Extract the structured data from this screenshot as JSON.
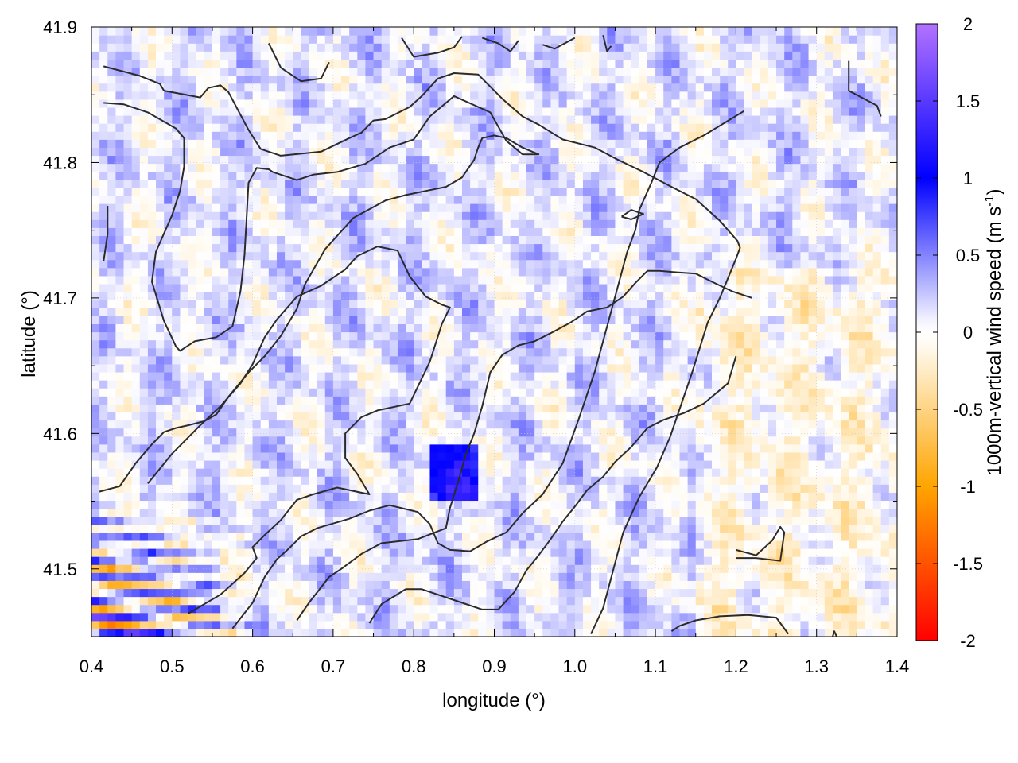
{
  "chart_data": {
    "type": "heatmap",
    "title": "",
    "xlabel": "longitude (°)",
    "ylabel": "latitude (°)",
    "colorbar_label": "1000m-vertical wind speed (m s",
    "colorbar_label_sup": "-1",
    "colorbar_label_end": ")",
    "xlim": [
      0.4,
      1.4
    ],
    "ylim": [
      41.45,
      41.9
    ],
    "x_ticks": [
      "0.4",
      "0.5",
      "0.6",
      "0.7",
      "0.8",
      "0.9",
      "1.0",
      "1.1",
      "1.2",
      "1.3",
      "1.4"
    ],
    "y_ticks": [
      "41.5",
      "41.6",
      "41.7",
      "41.8",
      "41.9"
    ],
    "colorbar_range": [
      -2,
      2
    ],
    "colorbar_ticks": [
      "2",
      "1.5",
      "1",
      "0.5",
      "0",
      "-0.5",
      "-1",
      "-1.5",
      "-2"
    ],
    "grid": true,
    "colormap": [
      "#ff0000",
      "#ffa500",
      "#fffbf2",
      "#ffffff",
      "#f2f2ff",
      "#0000ff",
      "#b272ff"
    ],
    "contour_lines": [
      {
        "points": [
          [
            0.415,
            41.871
          ],
          [
            0.46,
            41.864
          ],
          [
            0.485,
            41.858
          ],
          [
            0.49,
            41.853
          ],
          [
            0.535,
            41.848
          ],
          [
            0.545,
            41.855
          ],
          [
            0.56,
            41.857
          ],
          [
            0.57,
            41.852
          ],
          [
            0.595,
            41.824
          ],
          [
            0.61,
            41.81
          ],
          [
            0.635,
            41.805
          ],
          [
            0.685,
            41.808
          ],
          [
            0.72,
            41.818
          ],
          [
            0.735,
            41.822
          ],
          [
            0.75,
            41.831
          ],
          [
            0.765,
            41.832
          ],
          [
            0.795,
            41.841
          ],
          [
            0.81,
            41.849
          ],
          [
            0.83,
            41.862
          ],
          [
            0.85,
            41.866
          ],
          [
            0.88,
            41.865
          ],
          [
            0.91,
            41.847
          ],
          [
            0.935,
            41.834
          ],
          [
            0.955,
            41.828
          ],
          [
            0.985,
            41.817
          ],
          [
            1.025,
            41.811
          ],
          [
            1.05,
            41.803
          ],
          [
            1.085,
            41.793
          ],
          [
            1.12,
            41.782
          ],
          [
            1.15,
            41.773
          ],
          [
            1.18,
            41.757
          ],
          [
            1.202,
            41.742
          ],
          [
            1.205,
            41.737
          ],
          [
            1.2,
            41.729
          ],
          [
            1.18,
            41.7
          ],
          [
            1.165,
            41.682
          ],
          [
            1.145,
            41.644
          ],
          [
            1.118,
            41.597
          ],
          [
            1.102,
            41.575
          ],
          [
            1.08,
            41.553
          ],
          [
            1.06,
            41.527
          ],
          [
            1.035,
            41.471
          ],
          [
            1.02,
            41.452
          ]
        ]
      },
      {
        "points": [
          [
            0.415,
            41.844
          ],
          [
            0.44,
            41.843
          ],
          [
            0.47,
            41.837
          ],
          [
            0.505,
            41.825
          ],
          [
            0.515,
            41.818
          ],
          [
            0.515,
            41.797
          ],
          [
            0.51,
            41.779
          ],
          [
            0.5,
            41.761
          ],
          [
            0.48,
            41.734
          ],
          [
            0.475,
            41.712
          ],
          [
            0.49,
            41.683
          ],
          [
            0.505,
            41.664
          ],
          [
            0.51,
            41.661
          ],
          [
            0.528,
            41.668
          ],
          [
            0.555,
            41.671
          ],
          [
            0.575,
            41.679
          ],
          [
            0.585,
            41.705
          ],
          [
            0.59,
            41.732
          ],
          [
            0.595,
            41.785
          ],
          [
            0.605,
            41.796
          ],
          [
            0.62,
            41.795
          ],
          [
            0.625,
            41.793
          ],
          [
            0.655,
            41.787
          ],
          [
            0.675,
            41.791
          ],
          [
            0.705,
            41.793
          ],
          [
            0.74,
            41.799
          ],
          [
            0.77,
            41.811
          ],
          [
            0.8,
            41.817
          ],
          [
            0.82,
            41.834
          ],
          [
            0.85,
            41.849
          ],
          [
            0.895,
            41.837
          ],
          [
            0.915,
            41.816
          ],
          [
            0.935,
            41.806
          ],
          [
            0.955,
            41.806
          ],
          [
            0.935,
            41.811
          ],
          [
            0.915,
            41.818
          ],
          [
            0.9,
            41.82
          ],
          [
            0.885,
            41.818
          ],
          [
            0.88,
            41.811
          ],
          [
            0.875,
            41.802
          ],
          [
            0.86,
            41.789
          ],
          [
            0.84,
            41.782
          ],
          [
            0.815,
            41.779
          ],
          [
            0.79,
            41.776
          ],
          [
            0.765,
            41.772
          ],
          [
            0.725,
            41.759
          ],
          [
            0.69,
            41.736
          ],
          [
            0.665,
            41.71
          ],
          [
            0.655,
            41.692
          ],
          [
            0.635,
            41.672
          ],
          [
            0.615,
            41.657
          ],
          [
            0.595,
            41.645
          ],
          [
            0.57,
            41.627
          ],
          [
            0.555,
            41.614
          ],
          [
            0.54,
            41.609
          ],
          [
            0.52,
            41.606
          ],
          [
            0.505,
            41.604
          ],
          [
            0.49,
            41.601
          ],
          [
            0.475,
            41.592
          ],
          [
            0.455,
            41.578
          ],
          [
            0.435,
            41.561
          ],
          [
            0.41,
            41.557
          ]
        ]
      },
      {
        "points": [
          [
            0.52,
            41.467
          ],
          [
            0.56,
            41.481
          ],
          [
            0.59,
            41.497
          ],
          [
            0.605,
            41.508
          ],
          [
            0.6,
            41.516
          ],
          [
            0.615,
            41.525
          ],
          [
            0.635,
            41.536
          ],
          [
            0.655,
            41.551
          ],
          [
            0.675,
            41.555
          ],
          [
            0.705,
            41.56
          ],
          [
            0.745,
            41.555
          ],
          [
            0.73,
            41.57
          ],
          [
            0.715,
            41.582
          ],
          [
            0.715,
            41.6
          ],
          [
            0.735,
            41.612
          ],
          [
            0.755,
            41.617
          ],
          [
            0.795,
            41.622
          ],
          [
            0.82,
            41.653
          ],
          [
            0.835,
            41.681
          ],
          [
            0.845,
            41.693
          ],
          [
            0.835,
            41.695
          ],
          [
            0.815,
            41.701
          ],
          [
            0.795,
            41.716
          ],
          [
            0.78,
            41.735
          ],
          [
            0.755,
            41.738
          ],
          [
            0.73,
            41.731
          ],
          [
            0.715,
            41.721
          ],
          [
            0.685,
            41.709
          ],
          [
            0.655,
            41.701
          ],
          [
            0.63,
            41.684
          ],
          [
            0.615,
            41.671
          ],
          [
            0.6,
            41.651
          ],
          [
            0.585,
            41.637
          ],
          [
            0.56,
            41.62
          ],
          [
            0.535,
            41.606
          ],
          [
            0.5,
            41.585
          ],
          [
            0.47,
            41.563
          ]
        ]
      },
      {
        "points": [
          [
            0.575,
            41.456
          ],
          [
            0.6,
            41.475
          ],
          [
            0.615,
            41.494
          ],
          [
            0.63,
            41.507
          ],
          [
            0.645,
            41.515
          ],
          [
            0.66,
            41.524
          ],
          [
            0.68,
            41.53
          ],
          [
            0.72,
            41.537
          ],
          [
            0.745,
            41.543
          ],
          [
            0.77,
            41.547
          ],
          [
            0.805,
            41.542
          ],
          [
            0.82,
            41.533
          ],
          [
            0.83,
            41.519
          ],
          [
            0.845,
            41.514
          ],
          [
            0.87,
            41.513
          ],
          [
            0.89,
            41.52
          ],
          [
            0.915,
            41.527
          ],
          [
            0.935,
            41.541
          ],
          [
            0.96,
            41.555
          ],
          [
            0.985,
            41.578
          ],
          [
            1.005,
            41.611
          ],
          [
            1.025,
            41.646
          ],
          [
            1.04,
            41.679
          ],
          [
            1.055,
            41.712
          ],
          [
            1.065,
            41.734
          ],
          [
            1.075,
            41.75
          ],
          [
            1.08,
            41.765
          ],
          [
            1.095,
            41.785
          ],
          [
            1.105,
            41.8
          ],
          [
            1.13,
            41.811
          ],
          [
            1.16,
            41.82
          ],
          [
            1.21,
            41.838
          ]
        ]
      },
      {
        "points": [
          [
            0.655,
            41.462
          ],
          [
            0.67,
            41.475
          ],
          [
            0.695,
            41.494
          ],
          [
            0.71,
            41.5
          ],
          [
            0.735,
            41.511
          ],
          [
            0.76,
            41.519
          ],
          [
            0.805,
            41.522
          ],
          [
            0.84,
            41.53
          ],
          [
            0.845,
            41.545
          ],
          [
            0.855,
            41.564
          ],
          [
            0.865,
            41.585
          ],
          [
            0.875,
            41.6
          ],
          [
            0.885,
            41.62
          ],
          [
            0.895,
            41.645
          ],
          [
            0.91,
            41.658
          ],
          [
            0.93,
            41.665
          ],
          [
            0.95,
            41.668
          ],
          [
            0.97,
            41.674
          ],
          [
            0.995,
            41.682
          ],
          [
            1.015,
            41.69
          ],
          [
            1.04,
            41.693
          ],
          [
            1.06,
            41.701
          ],
          [
            1.075,
            41.711
          ],
          [
            1.09,
            41.72
          ],
          [
            1.105,
            41.72
          ],
          [
            1.125,
            41.719
          ],
          [
            1.15,
            41.718
          ],
          [
            1.17,
            41.712
          ],
          [
            1.195,
            41.705
          ],
          [
            1.22,
            41.7
          ]
        ]
      },
      {
        "points": [
          [
            0.745,
            41.46
          ],
          [
            0.76,
            41.474
          ],
          [
            0.79,
            41.485
          ],
          [
            0.81,
            41.485
          ],
          [
            0.85,
            41.477
          ],
          [
            0.885,
            41.47
          ],
          [
            0.905,
            41.47
          ],
          [
            0.925,
            41.483
          ],
          [
            0.94,
            41.499
          ],
          [
            0.955,
            41.51
          ],
          [
            0.97,
            41.522
          ],
          [
            0.985,
            41.535
          ],
          [
            1.0,
            41.546
          ],
          [
            1.015,
            41.558
          ],
          [
            1.035,
            41.568
          ],
          [
            1.05,
            41.579
          ],
          [
            1.07,
            41.59
          ],
          [
            1.09,
            41.604
          ],
          [
            1.11,
            41.61
          ],
          [
            1.135,
            41.615
          ],
          [
            1.16,
            41.622
          ],
          [
            1.19,
            41.637
          ],
          [
            1.2,
            41.657
          ]
        ]
      },
      {
        "points": [
          [
            0.415,
            41.727
          ],
          [
            0.42,
            41.747
          ],
          [
            0.42,
            41.768
          ]
        ]
      },
      {
        "points": [
          [
            0.62,
            41.888
          ],
          [
            0.635,
            41.87
          ],
          [
            0.66,
            41.86
          ],
          [
            0.685,
            41.862
          ],
          [
            0.695,
            41.874
          ]
        ]
      },
      {
        "points": [
          [
            0.785,
            41.892
          ],
          [
            0.8,
            41.878
          ],
          [
            0.83,
            41.881
          ],
          [
            0.85,
            41.885
          ],
          [
            0.86,
            41.893
          ]
        ]
      },
      {
        "points": [
          [
            0.885,
            41.892
          ],
          [
            0.905,
            41.888
          ],
          [
            0.92,
            41.882
          ],
          [
            0.93,
            41.89
          ]
        ]
      },
      {
        "points": [
          [
            0.96,
            41.887
          ],
          [
            0.975,
            41.884
          ],
          [
            1.0,
            41.892
          ]
        ]
      },
      {
        "points": [
          [
            1.035,
            41.894
          ],
          [
            1.04,
            41.882
          ],
          [
            1.045,
            41.886
          ]
        ]
      },
      {
        "points": [
          [
            1.34,
            41.875
          ],
          [
            1.34,
            41.853
          ],
          [
            1.375,
            41.842
          ],
          [
            1.38,
            41.834
          ]
        ]
      },
      {
        "points": [
          [
            1.058,
            41.76
          ],
          [
            1.07,
            41.765
          ],
          [
            1.085,
            41.762
          ],
          [
            1.07,
            41.758
          ],
          [
            1.058,
            41.76
          ]
        ]
      },
      {
        "points": [
          [
            1.2,
            41.514
          ],
          [
            1.225,
            41.51
          ],
          [
            1.245,
            41.521
          ],
          [
            1.255,
            41.531
          ],
          [
            1.26,
            41.527
          ],
          [
            1.255,
            41.506
          ],
          [
            1.225,
            41.508
          ],
          [
            1.2,
            41.508
          ]
        ]
      },
      {
        "points": [
          [
            1.12,
            41.454
          ],
          [
            1.13,
            41.458
          ],
          [
            1.15,
            41.462
          ],
          [
            1.18,
            41.465
          ],
          [
            1.215,
            41.466
          ],
          [
            1.25,
            41.464
          ],
          [
            1.265,
            41.452
          ]
        ]
      },
      {
        "points": [
          [
            1.32,
            41.45
          ],
          [
            1.322,
            41.454
          ],
          [
            1.325,
            41.45
          ]
        ]
      }
    ]
  }
}
